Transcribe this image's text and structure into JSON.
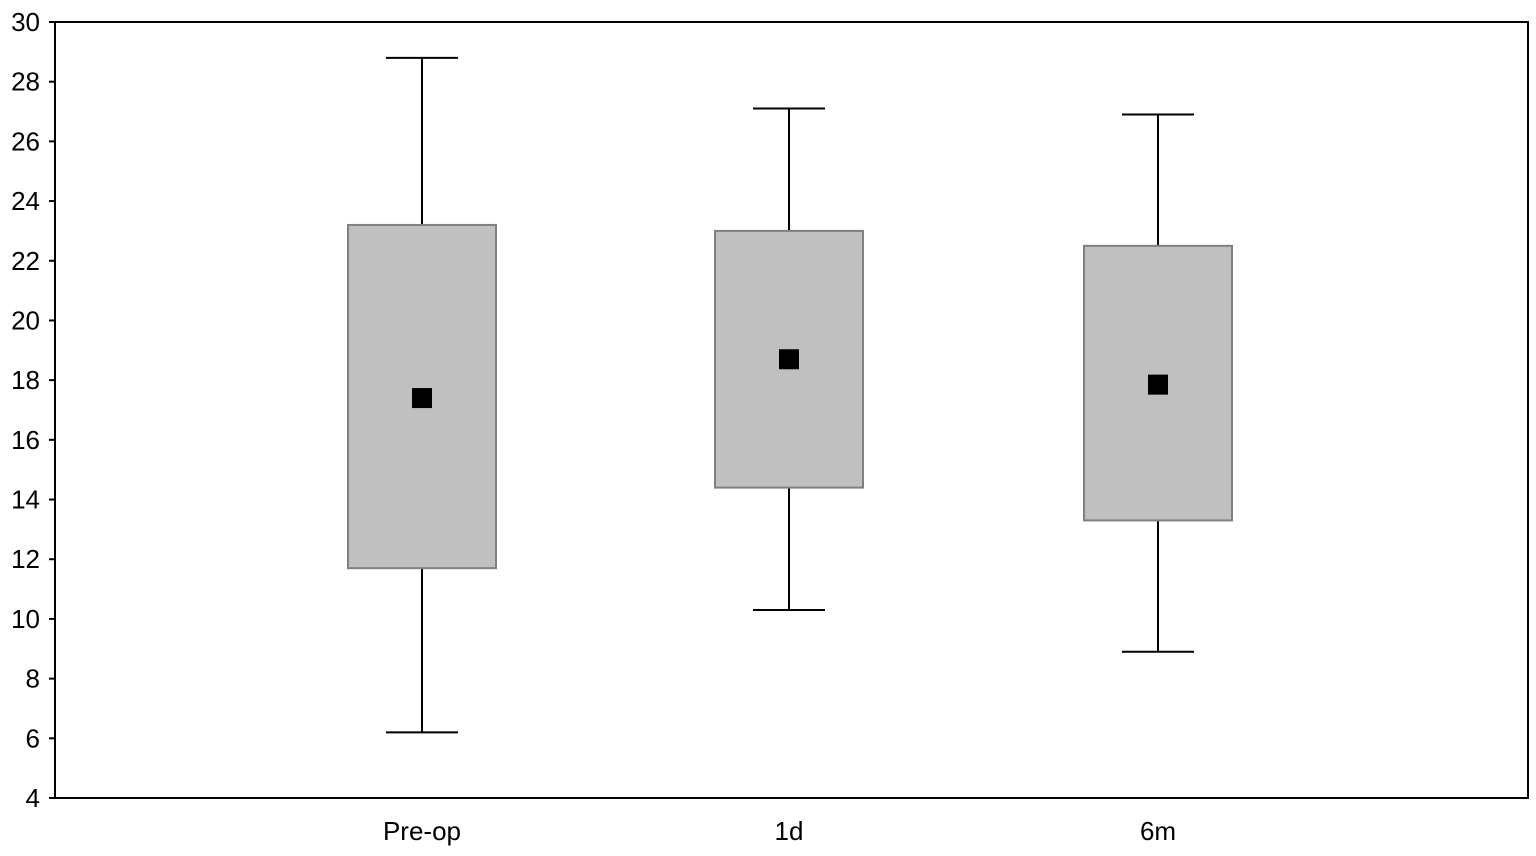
{
  "chart_data": {
    "type": "box",
    "title": "",
    "xlabel": "",
    "ylabel": "",
    "ylim": [
      4,
      30
    ],
    "yticks": [
      "4",
      "6",
      "8",
      "10",
      "12",
      "14",
      "16",
      "18",
      "20",
      "22",
      "24",
      "26",
      "28",
      "30"
    ],
    "categories": [
      "Pre-op",
      "1d",
      "6m"
    ],
    "boxes": [
      {
        "category": "Pre-op",
        "whisker_low": 6.2,
        "q1": 11.7,
        "center": 17.4,
        "q3": 23.2,
        "whisker_high": 28.8
      },
      {
        "category": "1d",
        "whisker_low": 10.3,
        "q1": 14.4,
        "center": 18.7,
        "q3": 23.0,
        "whisker_high": 27.1
      },
      {
        "category": "6m",
        "whisker_low": 8.9,
        "q1": 13.3,
        "center": 17.85,
        "q3": 22.5,
        "whisker_high": 26.9
      }
    ],
    "grid": false,
    "colors": {
      "box_fill": "#c0c0c0",
      "box_stroke": "#808080",
      "marker": "#000000",
      "whisker": "#000000",
      "axis": "#000000"
    }
  }
}
